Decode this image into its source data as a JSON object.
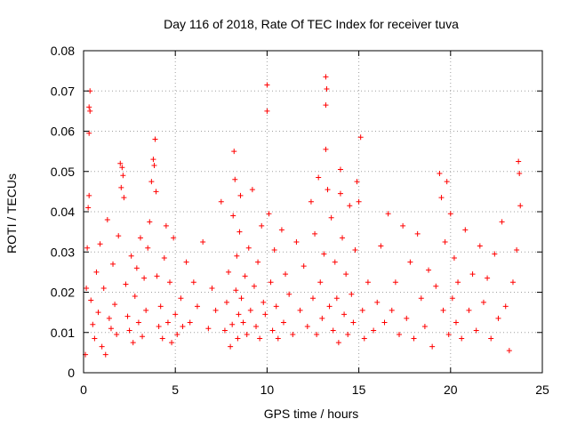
{
  "chart_data": {
    "type": "scatter",
    "title": "Day 116 of 2018, Rate Of TEC Index for receiver tuva",
    "xlabel": "GPS time / hours",
    "ylabel": "ROTI / TECUs",
    "xlim": [
      0,
      25
    ],
    "ylim": [
      0,
      0.08
    ],
    "xticks": [
      0,
      5,
      10,
      15,
      20,
      25
    ],
    "xtick_labels": [
      "0",
      "5",
      "10",
      "15",
      "20",
      "25"
    ],
    "yticks": [
      0,
      0.01,
      0.02,
      0.03,
      0.04,
      0.05,
      0.06,
      0.07,
      0.08
    ],
    "ytick_labels": [
      "0",
      "0.01",
      "0.02",
      "0.03",
      "0.04",
      "0.05",
      "0.06",
      "0.07",
      "0.08"
    ],
    "grid": true,
    "marker": "+",
    "color": "#ff0000",
    "series": [
      {
        "name": "ROTI",
        "points": [
          [
            0.1,
            0.0045
          ],
          [
            0.15,
            0.021
          ],
          [
            0.2,
            0.031
          ],
          [
            0.25,
            0.041
          ],
          [
            0.3,
            0.044
          ],
          [
            0.3,
            0.0595
          ],
          [
            0.3,
            0.066
          ],
          [
            0.35,
            0.065
          ],
          [
            0.35,
            0.07
          ],
          [
            0.4,
            0.018
          ],
          [
            0.5,
            0.012
          ],
          [
            0.6,
            0.0085
          ],
          [
            0.7,
            0.025
          ],
          [
            0.8,
            0.015
          ],
          [
            0.9,
            0.032
          ],
          [
            1.0,
            0.0065
          ],
          [
            1.1,
            0.021
          ],
          [
            1.2,
            0.0045
          ],
          [
            1.3,
            0.038
          ],
          [
            1.4,
            0.0135
          ],
          [
            1.5,
            0.011
          ],
          [
            1.6,
            0.027
          ],
          [
            1.7,
            0.017
          ],
          [
            1.8,
            0.0095
          ],
          [
            1.9,
            0.034
          ],
          [
            2.0,
            0.052
          ],
          [
            2.05,
            0.046
          ],
          [
            2.1,
            0.051
          ],
          [
            2.15,
            0.049
          ],
          [
            2.2,
            0.0435
          ],
          [
            2.3,
            0.022
          ],
          [
            2.4,
            0.014
          ],
          [
            2.5,
            0.0105
          ],
          [
            2.6,
            0.029
          ],
          [
            2.7,
            0.0075
          ],
          [
            2.8,
            0.019
          ],
          [
            2.9,
            0.026
          ],
          [
            3.0,
            0.0125
          ],
          [
            3.1,
            0.0335
          ],
          [
            3.2,
            0.009
          ],
          [
            3.3,
            0.0235
          ],
          [
            3.4,
            0.0155
          ],
          [
            3.5,
            0.031
          ],
          [
            3.6,
            0.0375
          ],
          [
            3.7,
            0.0475
          ],
          [
            3.8,
            0.053
          ],
          [
            3.85,
            0.0515
          ],
          [
            3.9,
            0.058
          ],
          [
            3.95,
            0.045
          ],
          [
            4.0,
            0.024
          ],
          [
            4.1,
            0.0115
          ],
          [
            4.2,
            0.0165
          ],
          [
            4.3,
            0.0085
          ],
          [
            4.4,
            0.0285
          ],
          [
            4.5,
            0.0365
          ],
          [
            4.6,
            0.0125
          ],
          [
            4.7,
            0.0225
          ],
          [
            4.8,
            0.0075
          ],
          [
            4.9,
            0.0335
          ],
          [
            5.0,
            0.0145
          ],
          [
            5.1,
            0.0095
          ],
          [
            5.3,
            0.0185
          ],
          [
            5.4,
            0.0115
          ],
          [
            5.6,
            0.0275
          ],
          [
            5.8,
            0.0125
          ],
          [
            6.0,
            0.0225
          ],
          [
            6.2,
            0.0165
          ],
          [
            6.5,
            0.0325
          ],
          [
            6.8,
            0.011
          ],
          [
            7.0,
            0.021
          ],
          [
            7.2,
            0.0155
          ],
          [
            7.5,
            0.0425
          ],
          [
            7.7,
            0.0105
          ],
          [
            7.8,
            0.0175
          ],
          [
            7.9,
            0.025
          ],
          [
            8.0,
            0.0065
          ],
          [
            8.1,
            0.012
          ],
          [
            8.15,
            0.039
          ],
          [
            8.2,
            0.055
          ],
          [
            8.25,
            0.048
          ],
          [
            8.3,
            0.0205
          ],
          [
            8.35,
            0.029
          ],
          [
            8.4,
            0.0085
          ],
          [
            8.45,
            0.0145
          ],
          [
            8.5,
            0.035
          ],
          [
            8.55,
            0.044
          ],
          [
            8.6,
            0.0185
          ],
          [
            8.7,
            0.0125
          ],
          [
            8.8,
            0.024
          ],
          [
            8.9,
            0.0095
          ],
          [
            9.0,
            0.031
          ],
          [
            9.1,
            0.0155
          ],
          [
            9.2,
            0.0455
          ],
          [
            9.3,
            0.0215
          ],
          [
            9.4,
            0.0115
          ],
          [
            9.5,
            0.0275
          ],
          [
            9.6,
            0.0085
          ],
          [
            9.7,
            0.0365
          ],
          [
            9.8,
            0.0175
          ],
          [
            9.9,
            0.0145
          ],
          [
            10.0,
            0.0715
          ],
          [
            10.0,
            0.065
          ],
          [
            10.1,
            0.0395
          ],
          [
            10.2,
            0.0225
          ],
          [
            10.3,
            0.0105
          ],
          [
            10.4,
            0.0305
          ],
          [
            10.5,
            0.0165
          ],
          [
            10.6,
            0.0085
          ],
          [
            10.8,
            0.0355
          ],
          [
            10.9,
            0.0125
          ],
          [
            11.0,
            0.0245
          ],
          [
            11.2,
            0.0195
          ],
          [
            11.4,
            0.0095
          ],
          [
            11.6,
            0.0325
          ],
          [
            11.8,
            0.0155
          ],
          [
            12.0,
            0.0265
          ],
          [
            12.2,
            0.0115
          ],
          [
            12.4,
            0.0425
          ],
          [
            12.5,
            0.0185
          ],
          [
            12.6,
            0.0345
          ],
          [
            12.7,
            0.0095
          ],
          [
            12.8,
            0.0485
          ],
          [
            12.9,
            0.0225
          ],
          [
            13.0,
            0.0135
          ],
          [
            13.1,
            0.0295
          ],
          [
            13.2,
            0.0735
          ],
          [
            13.25,
            0.0705
          ],
          [
            13.2,
            0.0665
          ],
          [
            13.2,
            0.0555
          ],
          [
            13.3,
            0.0455
          ],
          [
            13.4,
            0.0165
          ],
          [
            13.5,
            0.0385
          ],
          [
            13.6,
            0.0105
          ],
          [
            13.7,
            0.0275
          ],
          [
            13.8,
            0.0185
          ],
          [
            13.9,
            0.0075
          ],
          [
            14.0,
            0.0505
          ],
          [
            14.0,
            0.0445
          ],
          [
            14.1,
            0.0335
          ],
          [
            14.2,
            0.0145
          ],
          [
            14.3,
            0.0245
          ],
          [
            14.4,
            0.0095
          ],
          [
            14.5,
            0.0415
          ],
          [
            14.6,
            0.0195
          ],
          [
            14.7,
            0.0125
          ],
          [
            14.8,
            0.0305
          ],
          [
            14.9,
            0.0475
          ],
          [
            15.0,
            0.0425
          ],
          [
            15.1,
            0.0585
          ],
          [
            15.2,
            0.0155
          ],
          [
            15.3,
            0.0085
          ],
          [
            15.5,
            0.0225
          ],
          [
            15.8,
            0.0105
          ],
          [
            16.0,
            0.0175
          ],
          [
            16.2,
            0.0315
          ],
          [
            16.4,
            0.0125
          ],
          [
            16.6,
            0.0395
          ],
          [
            16.8,
            0.0155
          ],
          [
            17.0,
            0.0225
          ],
          [
            17.2,
            0.0095
          ],
          [
            17.4,
            0.0365
          ],
          [
            17.6,
            0.0135
          ],
          [
            17.8,
            0.0275
          ],
          [
            18.0,
            0.0085
          ],
          [
            18.2,
            0.0345
          ],
          [
            18.4,
            0.0185
          ],
          [
            18.6,
            0.0115
          ],
          [
            18.8,
            0.0255
          ],
          [
            19.0,
            0.0065
          ],
          [
            19.2,
            0.0215
          ],
          [
            19.4,
            0.0495
          ],
          [
            19.5,
            0.0435
          ],
          [
            19.6,
            0.0155
          ],
          [
            19.7,
            0.0325
          ],
          [
            19.8,
            0.0475
          ],
          [
            19.9,
            0.0095
          ],
          [
            20.0,
            0.0395
          ],
          [
            20.1,
            0.0185
          ],
          [
            20.2,
            0.0285
          ],
          [
            20.3,
            0.0125
          ],
          [
            20.4,
            0.0225
          ],
          [
            20.6,
            0.0085
          ],
          [
            20.8,
            0.0355
          ],
          [
            21.0,
            0.0155
          ],
          [
            21.2,
            0.0245
          ],
          [
            21.4,
            0.0105
          ],
          [
            21.6,
            0.0315
          ],
          [
            21.8,
            0.0175
          ],
          [
            22.0,
            0.0235
          ],
          [
            22.2,
            0.0085
          ],
          [
            22.4,
            0.0295
          ],
          [
            22.6,
            0.0135
          ],
          [
            22.8,
            0.0375
          ],
          [
            23.0,
            0.0165
          ],
          [
            23.2,
            0.0055
          ],
          [
            23.4,
            0.0225
          ],
          [
            23.6,
            0.0305
          ],
          [
            23.7,
            0.0525
          ],
          [
            23.75,
            0.0495
          ],
          [
            23.8,
            0.0415
          ]
        ]
      }
    ]
  }
}
